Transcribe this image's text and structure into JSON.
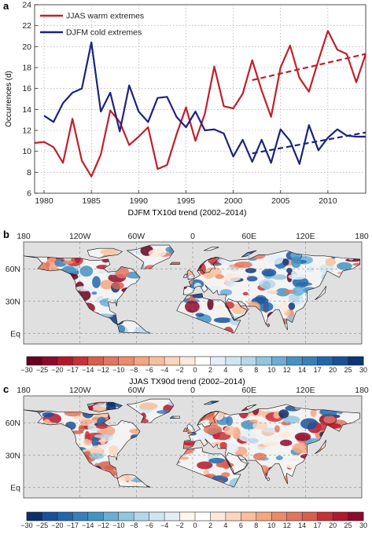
{
  "panels": {
    "a": "a",
    "b": "b",
    "c": "c"
  },
  "chart_data": [
    {
      "panel": "a",
      "type": "line",
      "xlabel": "",
      "ylabel": "Occurrences (d)",
      "xlim": [
        1979,
        2014
      ],
      "ylim": [
        6,
        24
      ],
      "xticks": [
        1980,
        1985,
        1990,
        1995,
        2000,
        2005,
        2010
      ],
      "yticks": [
        6,
        8,
        10,
        12,
        14,
        16,
        18,
        20,
        22,
        24
      ],
      "grid": true,
      "legend_position": "top-left",
      "series": [
        {
          "name": "JJAS warm extremes",
          "color": "#c0202a",
          "x": [
            1979,
            1980,
            1981,
            1982,
            1983,
            1984,
            1985,
            1986,
            1987,
            1988,
            1989,
            1990,
            1991,
            1992,
            1993,
            1994,
            1995,
            1996,
            1997,
            1998,
            1999,
            2000,
            2001,
            2002,
            2003,
            2004,
            2005,
            2006,
            2007,
            2008,
            2009,
            2010,
            2011,
            2012,
            2013,
            2014
          ],
          "values": [
            10.8,
            10.9,
            10.4,
            8.9,
            13.1,
            9.1,
            7.6,
            9.7,
            13.9,
            12.8,
            10.6,
            11.4,
            12.3,
            8.3,
            8.7,
            11.6,
            14.2,
            11.0,
            13.6,
            18.1,
            14.3,
            14.1,
            15.5,
            18.7,
            15.8,
            13.3,
            18.0,
            20.1,
            17.0,
            15.7,
            18.7,
            21.5,
            19.7,
            19.3,
            16.6,
            19.3
          ]
        },
        {
          "name": "DJFM cold extremes",
          "color": "#1a237e",
          "x": [
            1980,
            1981,
            1982,
            1983,
            1984,
            1985,
            1986,
            1987,
            1988,
            1989,
            1990,
            1991,
            1992,
            1993,
            1994,
            1995,
            1996,
            1997,
            1998,
            1999,
            2000,
            2001,
            2002,
            2003,
            2004,
            2005,
            2006,
            2007,
            2008,
            2009,
            2010,
            2011,
            2012,
            2013,
            2014
          ],
          "values": [
            13.4,
            12.8,
            14.6,
            15.6,
            16.0,
            20.4,
            13.8,
            15.6,
            11.9,
            16.3,
            13.8,
            12.8,
            15.1,
            15.2,
            13.3,
            12.3,
            13.8,
            12.0,
            12.1,
            11.7,
            9.5,
            11.1,
            9.0,
            11.1,
            8.9,
            12.1,
            11.0,
            8.8,
            12.5,
            10.1,
            11.3,
            12.1,
            11.5,
            11.4,
            11.4
          ]
        }
      ],
      "trend_lines": [
        {
          "series": "JJAS warm extremes",
          "x": [
            2002,
            2014
          ],
          "values": [
            16.8,
            19.3
          ]
        },
        {
          "series": "DJFM cold extremes",
          "x": [
            2002,
            2014
          ],
          "values": [
            9.8,
            11.8
          ]
        }
      ]
    },
    {
      "panel": "b",
      "type": "heatmap",
      "title": "DJFM TX10d trend (2002–2014)",
      "colorbar_label": "JJAS TX90d trend (2002–2014)",
      "lon_ticks": [
        "180",
        "120W",
        "60W",
        "0",
        "60E",
        "120E",
        "180"
      ],
      "lat_ticks": [
        "60N",
        "30N",
        "Eq"
      ],
      "colorbar_ticks": [
        "−30",
        "−25",
        "−20",
        "−17",
        "−14",
        "−12",
        "−10",
        "−8",
        "−6",
        "−4",
        "−2",
        "0",
        "2",
        "4",
        "6",
        "8",
        "10",
        "12",
        "14",
        "17",
        "20",
        "25",
        "30"
      ],
      "colorbar_colors": [
        "#67001f",
        "#8e0a2c",
        "#b2182b",
        "#c73036",
        "#d6604d",
        "#e27560",
        "#ec8a6a",
        "#f4a582",
        "#f8bf9e",
        "#fbd5bd",
        "#fde8db",
        "#ffffff",
        "#e3eef6",
        "#d1e5f0",
        "#b7d6ea",
        "#92c5de",
        "#6aaed6",
        "#4393c3",
        "#3a7fb7",
        "#2166ac",
        "#17519a",
        "#0a3579"
      ],
      "ocean_color": "#e0e0e0"
    },
    {
      "panel": "c",
      "type": "heatmap",
      "colorbar_label": "",
      "lon_ticks": [
        "180",
        "120W",
        "60W",
        "0",
        "60E",
        "120E",
        "180"
      ],
      "lat_ticks": [
        "60N",
        "30N",
        "Eq"
      ],
      "colorbar_ticks": [
        "−30",
        "−25",
        "−20",
        "−17",
        "−14",
        "−12",
        "−10",
        "−8",
        "−6",
        "−4",
        "−2",
        "0",
        "2",
        "4",
        "6",
        "8",
        "10",
        "12",
        "14",
        "17",
        "20",
        "25",
        "30"
      ],
      "colorbar_colors": [
        "#0a2f6b",
        "#17519a",
        "#2166ac",
        "#3a7fb7",
        "#4393c3",
        "#6aaed6",
        "#92c5de",
        "#b7d6ea",
        "#d1e5f0",
        "#e3eef6",
        "#fdf5ee",
        "#ffffff",
        "#fde8db",
        "#fbd5bd",
        "#f8bf9e",
        "#f4a582",
        "#ec8a6a",
        "#e27560",
        "#d6604d",
        "#c73036",
        "#b2182b",
        "#8e0a2c"
      ],
      "ocean_color": "#e0e0e0"
    }
  ]
}
